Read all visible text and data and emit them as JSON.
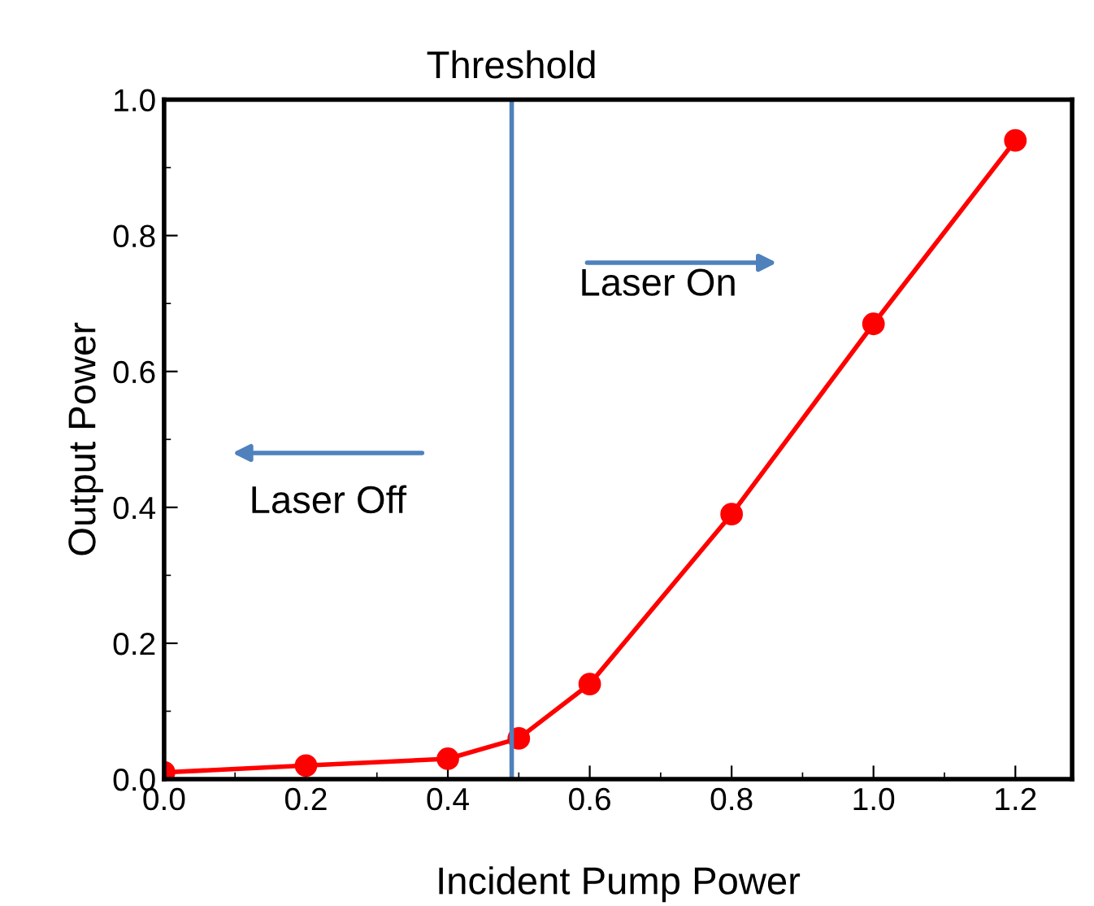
{
  "chart_data": {
    "type": "line",
    "xlabel": "Incident Pump Power",
    "ylabel": "Output Power",
    "x": [
      0.0,
      0.2,
      0.4,
      0.5,
      0.6,
      0.8,
      1.0,
      1.2
    ],
    "series": [
      {
        "color": "#ff0000",
        "values": [
          0.01,
          0.02,
          0.03,
          0.06,
          0.14,
          0.39,
          0.67,
          0.94
        ]
      }
    ],
    "marker": "circle",
    "line_style": "solid",
    "grid": false,
    "legend": false,
    "xlim": [
      0.0,
      1.28
    ],
    "xticks": [
      {
        "value": 0,
        "label": "0.0"
      },
      0.2,
      0.4,
      0.6,
      0.8,
      {
        "value": 1,
        "label": "1.0"
      },
      1.2
    ],
    "ylim": [
      0.0,
      1.0
    ],
    "yticks": [
      {
        "value": 0,
        "label": "0.0"
      },
      0.2,
      0.4,
      0.6,
      0.8,
      {
        "value": 1,
        "label": "1.0"
      }
    ],
    "ref_lines": [
      {
        "axis": "x",
        "value": 0.49,
        "label": "Threshold",
        "color": "#4f81bd"
      }
    ],
    "annotations": [
      "Laser On",
      "Laser Off"
    ]
  }
}
